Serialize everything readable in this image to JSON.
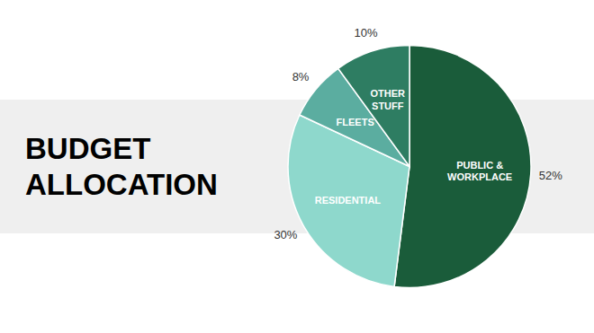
{
  "chart_data": {
    "type": "pie",
    "title": "BUDGET\nALLOCATION",
    "categories": [
      "PUBLIC &\nWORKPLACE",
      "RESIDENTIAL",
      "FLEETS",
      "OTHER\nSTUFF"
    ],
    "values": [
      52,
      30,
      8,
      10
    ],
    "value_labels": [
      "52%",
      "30%",
      "8%",
      "10%"
    ],
    "colors": [
      "#1a5c3a",
      "#8ed8cc",
      "#5bada0",
      "#2e7d62"
    ],
    "data_labels": true
  }
}
